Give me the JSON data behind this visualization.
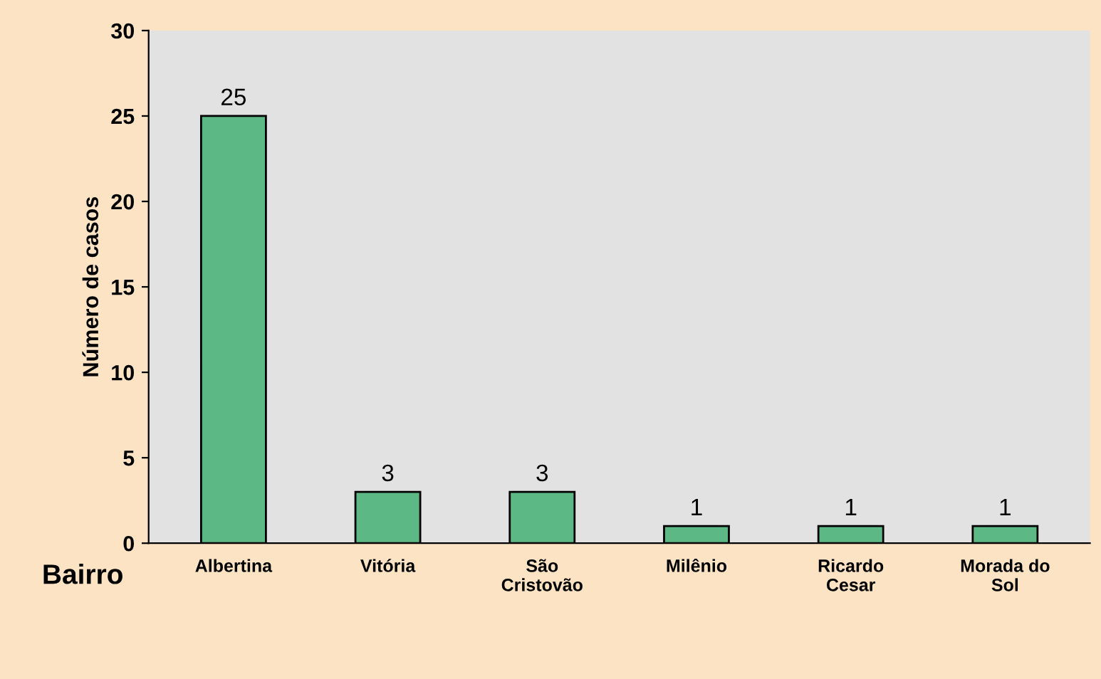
{
  "chart_data": {
    "type": "bar",
    "ylabel": "Número de casos",
    "xlabel": "Bairro",
    "categories": [
      "Albertina",
      "Vitória",
      "São\nCristovão",
      "Milênio",
      "Ricardo\nCesar",
      "Morada do\nSol"
    ],
    "values": [
      25,
      3,
      3,
      1,
      1,
      1
    ],
    "color": "#5cb885",
    "ylim": [
      0,
      30
    ],
    "yticks": [
      0,
      5,
      10,
      15,
      20,
      25,
      30
    ],
    "grid": false,
    "data_labels": true,
    "legend": false
  }
}
